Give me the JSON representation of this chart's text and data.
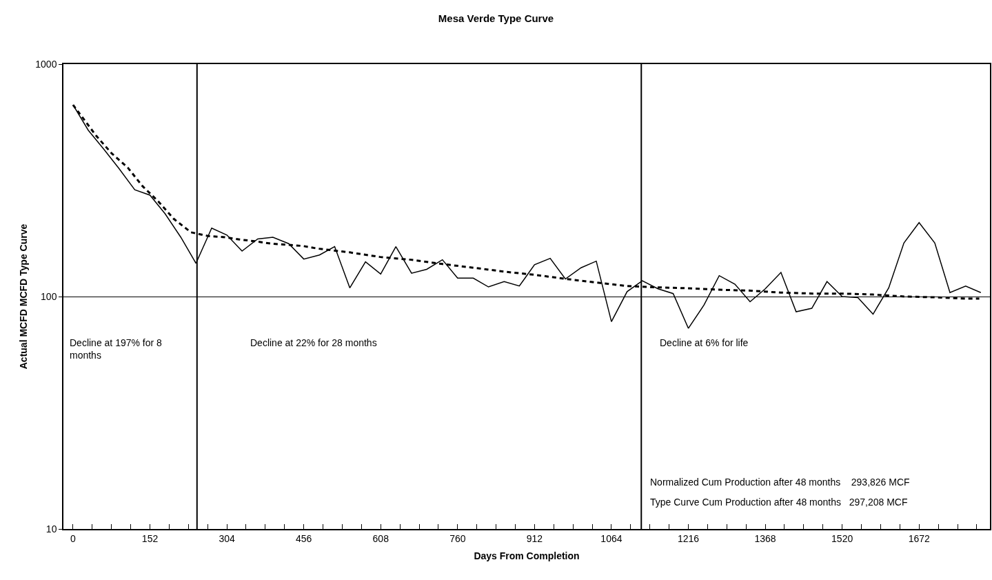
{
  "chart_data": {
    "type": "line",
    "title": "Mesa Verde Type Curve",
    "xlabel": "Days From Completion",
    "ylabel": "Actual MCFD MCFD Type Curve",
    "log": "y",
    "grid": "y",
    "marker": "none",
    "xlim": [
      -19,
      1812
    ],
    "ylim": [
      10,
      1000
    ],
    "yticks": [
      10,
      100,
      1000
    ],
    "xticks": [
      0,
      {
        "value": 38,
        "label": null
      },
      {
        "value": 76,
        "label": null
      },
      {
        "value": 114,
        "label": null
      },
      152,
      {
        "value": 190,
        "label": null
      },
      {
        "value": 228,
        "label": null
      },
      {
        "value": 266,
        "label": null
      },
      304,
      {
        "value": 342,
        "label": null
      },
      {
        "value": 380,
        "label": null
      },
      {
        "value": 418,
        "label": null
      },
      456,
      {
        "value": 494,
        "label": null
      },
      {
        "value": 532,
        "label": null
      },
      {
        "value": 570,
        "label": null
      },
      608,
      {
        "value": 646,
        "label": null
      },
      {
        "value": 684,
        "label": null
      },
      {
        "value": 722,
        "label": null
      },
      760,
      {
        "value": 798,
        "label": null
      },
      {
        "value": 836,
        "label": null
      },
      {
        "value": 874,
        "label": null
      },
      912,
      {
        "value": 950,
        "label": null
      },
      {
        "value": 988,
        "label": null
      },
      {
        "value": 1026,
        "label": null
      },
      1064,
      {
        "value": 1102,
        "label": null
      },
      {
        "value": 1140,
        "label": null
      },
      {
        "value": 1178,
        "label": null
      },
      1216,
      {
        "value": 1254,
        "label": null
      },
      {
        "value": 1292,
        "label": null
      },
      {
        "value": 1330,
        "label": null
      },
      1368,
      {
        "value": 1406,
        "label": null
      },
      {
        "value": 1444,
        "label": null
      },
      {
        "value": 1482,
        "label": null
      },
      1520,
      {
        "value": 1558,
        "label": null
      },
      {
        "value": 1596,
        "label": null
      },
      {
        "value": 1634,
        "label": null
      },
      1672,
      {
        "value": 1710,
        "label": null
      },
      {
        "value": 1748,
        "label": null
      },
      {
        "value": 1786,
        "label": null
      }
    ],
    "series": [
      {
        "color": "#000000",
        "line_style": "solid",
        "x": [
          0,
          30,
          61,
          91,
          122,
          152,
          182,
          213,
          243,
          274,
          304,
          334,
          365,
          395,
          426,
          456,
          487,
          517,
          547,
          578,
          608,
          638,
          669,
          699,
          730,
          760,
          791,
          821,
          852,
          882,
          912,
          943,
          973,
          1004,
          1034,
          1064,
          1095,
          1125,
          1156,
          1186,
          1216,
          1247,
          1277,
          1308,
          1338,
          1368,
          1399,
          1429,
          1460,
          1490,
          1520,
          1551,
          1581,
          1612,
          1642,
          1672,
          1703,
          1733,
          1764,
          1794
        ],
        "values": [
          668,
          520,
          430,
          355,
          288,
          273,
          227,
          180,
          139,
          197,
          184,
          157,
          177,
          180,
          169,
          145,
          151,
          164,
          109,
          141,
          125,
          164,
          126,
          131,
          144,
          120,
          120,
          110,
          116,
          111,
          137,
          146,
          119,
          133,
          142,
          78,
          105,
          117,
          108,
          103,
          73,
          92,
          123,
          113,
          95,
          108,
          127,
          86,
          89,
          116,
          100,
          99,
          84,
          109,
          170,
          208,
          170,
          104,
          111,
          104
        ]
      },
      {
        "color": "#000000",
        "line_style": "dashed",
        "x": [
          0,
          46,
          76,
          108,
          137,
          169,
          199,
          233,
          268,
          300,
          329,
          359,
          391,
          425,
          455,
          482,
          546,
          607,
          668,
          730,
          792,
          852,
          913,
          975,
          1033,
          1094,
          1158,
          1213,
          1276,
          1340,
          1398,
          1462,
          1521,
          1580,
          1643,
          1703,
          1764,
          1791
        ],
        "values": [
          668,
          491,
          414,
          359,
          299,
          256,
          216,
          189,
          182,
          180,
          176,
          173,
          169,
          167,
          165,
          161,
          155,
          148,
          144,
          138,
          133,
          128,
          124,
          119,
          115,
          111,
          109.5,
          108.6,
          107,
          106,
          104,
          103,
          103,
          102,
          100,
          99.3,
          98,
          98
        ]
      }
    ],
    "ref_lines": [
      {
        "axis": "x",
        "value": 245,
        "color": "#000000"
      },
      {
        "axis": "x",
        "value": 1123,
        "color": "#000000"
      }
    ],
    "annotations": [
      "Decline at 197% for 8 months",
      "Decline at 22% for 28 months",
      "Decline at 6% for life",
      "Normalized Cum Production after 48 months    293,826 MCF",
      "Type Curve Cum Production after 48 months   297,208 MCF"
    ]
  }
}
